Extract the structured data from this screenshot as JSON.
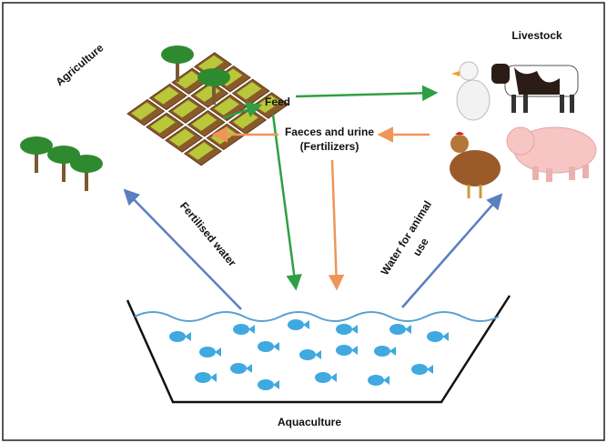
{
  "nodes": {
    "agriculture": {
      "label": "Agriculture"
    },
    "livestock": {
      "label": "Livestock"
    },
    "aquaculture": {
      "label": "Aquaculture"
    }
  },
  "edges": {
    "feed": {
      "label": "Feed"
    },
    "faeces": {
      "label": "Faeces and urine",
      "sublabel": "(Fertilizers)"
    },
    "fertilised_water": {
      "label": "Fertilised water"
    },
    "water_animal": {
      "label": "Water for animal",
      "sublabel": "use"
    }
  }
}
